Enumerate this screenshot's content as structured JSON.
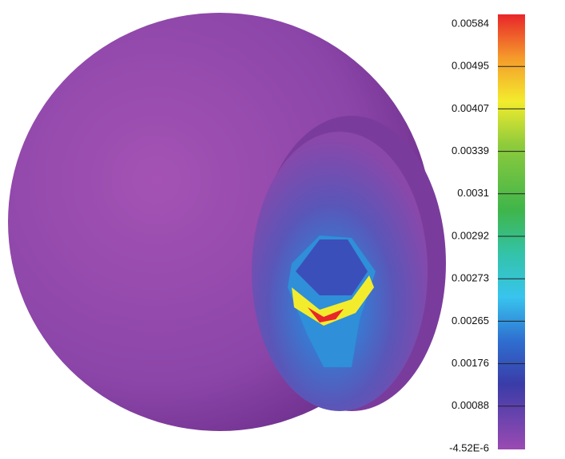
{
  "colorbar": {
    "labels": [
      "0.00584",
      "0.00495",
      "0.00407",
      "0.00339",
      "0.0031",
      "0.00292",
      "0.00273",
      "0.00265",
      "0.00176",
      "0.00088",
      "-4.52E-6"
    ]
  }
}
